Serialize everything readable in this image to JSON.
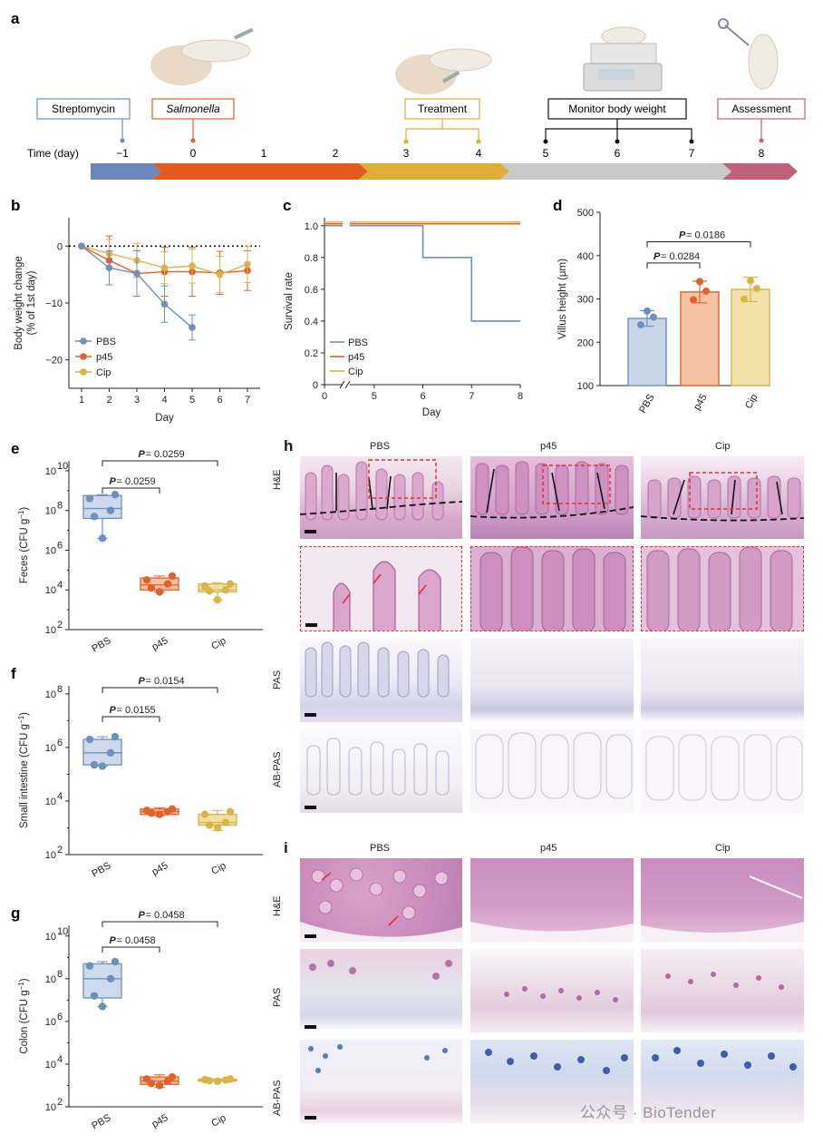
{
  "panels": {
    "a": "a",
    "b": "b",
    "c": "c",
    "d": "d",
    "e": "e",
    "f": "f",
    "g": "g",
    "h": "h",
    "i": "i"
  },
  "colors": {
    "pbs": "#6f8fbd",
    "p45": "#e1612a",
    "cip": "#d9b44a",
    "tl_pre": "#6a86ba",
    "tl_sal": "#e55b1e",
    "tl_treat": "#dfae3a",
    "tl_mon": "#c9c9c9",
    "tl_assess": "#c0607a"
  },
  "timeline": {
    "axis_label": "Time (day)",
    "days": [
      "−1",
      "0",
      "1",
      "2",
      "3",
      "4",
      "5",
      "6",
      "7",
      "8"
    ],
    "boxes": {
      "streptomycin": "Streptomycin",
      "salmonella": "Salmonella",
      "treatment": "Treatment",
      "monitor": "Monitor body weight",
      "assessment": "Assessment"
    }
  },
  "chart_data": [
    {
      "panel": "b",
      "type": "line",
      "xlabel": "Day",
      "ylabel": "Body weight change",
      "ylabel2": "(% of 1st day)",
      "xlim": [
        1,
        7
      ],
      "ylim": [
        -25,
        5
      ],
      "xticks": [
        1,
        2,
        3,
        4,
        5,
        6,
        7
      ],
      "yticks": [
        0,
        -10,
        -20
      ],
      "ytick_labels": [
        "0",
        "−10",
        "−20"
      ],
      "series": [
        {
          "name": "PBS",
          "x": [
            1,
            2,
            3,
            4,
            5
          ],
          "y": [
            0,
            -3.8,
            -4.8,
            -10.2,
            -14.3
          ],
          "err": [
            0,
            3,
            4,
            3.2,
            2.2
          ]
        },
        {
          "name": "p45",
          "x": [
            1,
            2,
            3,
            4,
            5,
            6,
            7
          ],
          "y": [
            0,
            -2.5,
            -4.8,
            -4.5,
            -4.5,
            -4.7,
            -4.3
          ],
          "err": [
            0,
            4.3,
            4,
            4.3,
            4.3,
            3.8,
            3.5
          ]
        },
        {
          "name": "Cip",
          "x": [
            1,
            2,
            3,
            4,
            5,
            6,
            7
          ],
          "y": [
            0,
            -1.3,
            -2.5,
            -3.8,
            -3.5,
            -5,
            -3.2
          ],
          "err": [
            0,
            2.5,
            3,
            2.8,
            3,
            3.2,
            3.2
          ]
        }
      ]
    },
    {
      "panel": "c",
      "type": "line",
      "xlabel": "Day",
      "ylabel": "Survival rate",
      "xlim": [
        0,
        8
      ],
      "ylim": [
        0,
        1.05
      ],
      "xtick_labels": [
        "0",
        "5",
        "6",
        "7",
        "8"
      ],
      "yticks": [
        0,
        0.2,
        0.4,
        0.6,
        0.8,
        1.0
      ],
      "ytick_labels": [
        "0",
        "0.2",
        "0.4",
        "0.6",
        "0.8",
        "1.0"
      ],
      "series": [
        {
          "name": "PBS",
          "steps": [
            [
              0,
              1.0
            ],
            [
              6,
              1.0
            ],
            [
              6,
              0.8
            ],
            [
              7,
              0.8
            ],
            [
              7,
              0.4
            ],
            [
              8,
              0.4
            ]
          ]
        },
        {
          "name": "p45",
          "steps": [
            [
              0,
              1.0
            ],
            [
              8,
              1.0
            ]
          ]
        },
        {
          "name": "Cip",
          "steps": [
            [
              0,
              1.0
            ],
            [
              8,
              1.0
            ]
          ]
        }
      ]
    },
    {
      "panel": "d",
      "type": "bar",
      "ylabel": "Villus height (μm)",
      "ylim": [
        100,
        500
      ],
      "yticks": [
        100,
        200,
        300,
        400,
        500
      ],
      "categories": [
        "PBS",
        "p45",
        "Cip"
      ],
      "values": [
        255,
        316,
        322
      ],
      "err": [
        18,
        25,
        28
      ],
      "points": [
        [
          272,
          240,
          258
        ],
        [
          340,
          298,
          318
        ],
        [
          342,
          300,
          324
        ]
      ],
      "p_values": [
        {
          "text": "= 0.0284",
          "from": 0,
          "to": 1
        },
        {
          "text": "= 0.0186",
          "from": 0,
          "to": 2
        }
      ]
    },
    {
      "panel": "e",
      "type": "box",
      "ylabel": "Feces (CFU g",
      "ylog": [
        2,
        10.5
      ],
      "ytick_exps": [
        "2",
        "4",
        "6",
        "8",
        "10"
      ],
      "categories": [
        "PBS",
        "p45",
        "Cip"
      ],
      "boxes": [
        [
          6.6,
          7.6,
          8.1,
          8.75,
          8.8
        ],
        [
          3.9,
          4.0,
          4.25,
          4.6,
          4.7
        ],
        [
          3.5,
          3.9,
          4.0,
          4.3,
          4.35
        ]
      ],
      "points": [
        [
          6.6,
          7.7,
          8.0,
          8.6,
          8.8
        ],
        [
          3.9,
          4.1,
          4.3,
          4.5,
          4.7
        ],
        [
          3.5,
          3.95,
          4.0,
          4.2,
          4.3
        ]
      ],
      "p_values": [
        {
          "text": "= 0.0259",
          "from": 0,
          "to": 1
        },
        {
          "text": "= 0.0259",
          "from": 0,
          "to": 2
        }
      ]
    },
    {
      "panel": "f",
      "type": "box",
      "ylabel": "Small intestine (CFU g",
      "ylog": [
        2,
        8.3
      ],
      "ytick_exps": [
        "2",
        "4",
        "6",
        "8"
      ],
      "categories": [
        "PBS",
        "p45",
        "Cip"
      ],
      "boxes": [
        [
          5.3,
          5.35,
          5.8,
          6.3,
          6.4
        ],
        [
          3.45,
          3.5,
          3.6,
          3.7,
          3.75
        ],
        [
          2.9,
          3.1,
          3.2,
          3.5,
          3.65
        ]
      ],
      "points": [
        [
          5.3,
          5.35,
          5.8,
          6.3,
          6.4
        ],
        [
          3.5,
          3.55,
          3.6,
          3.65,
          3.7
        ],
        [
          3.0,
          3.1,
          3.2,
          3.5,
          3.6
        ]
      ],
      "p_values": [
        {
          "text": "= 0.0155",
          "from": 0,
          "to": 1
        },
        {
          "text": "= 0.0154",
          "from": 0,
          "to": 2
        }
      ]
    },
    {
      "panel": "g",
      "type": "box",
      "ylabel": "Colon (CFU g",
      "ylog": [
        2,
        10.5
      ],
      "ytick_exps": [
        "2",
        "4",
        "6",
        "8",
        "10"
      ],
      "categories": [
        "PBS",
        "p45",
        "Cip"
      ],
      "boxes": [
        [
          6.7,
          7.1,
          8.0,
          8.7,
          8.8
        ],
        [
          2.9,
          3.05,
          3.2,
          3.4,
          3.5
        ],
        [
          3.2,
          3.2,
          3.25,
          3.3,
          3.3
        ]
      ],
      "points": [
        [
          6.7,
          7.2,
          8.0,
          8.6,
          8.8
        ],
        [
          3.0,
          3.1,
          3.2,
          3.3,
          3.4
        ],
        [
          3.2,
          3.22,
          3.25,
          3.27,
          3.3
        ]
      ],
      "p_values": [
        {
          "text": "= 0.0458",
          "from": 0,
          "to": 1
        },
        {
          "text": "= 0.0458",
          "from": 0,
          "to": 2
        }
      ]
    }
  ],
  "histology_h": {
    "columns": [
      "PBS",
      "p45",
      "Cip"
    ],
    "rows": [
      "H&E",
      "PAS",
      "AB-PAS"
    ]
  },
  "histology_i": {
    "columns": [
      "PBS",
      "p45",
      "Cip"
    ],
    "rows": [
      "H&E",
      "PAS",
      "AB-PAS"
    ]
  },
  "watermark": "公众号 · BioTender"
}
